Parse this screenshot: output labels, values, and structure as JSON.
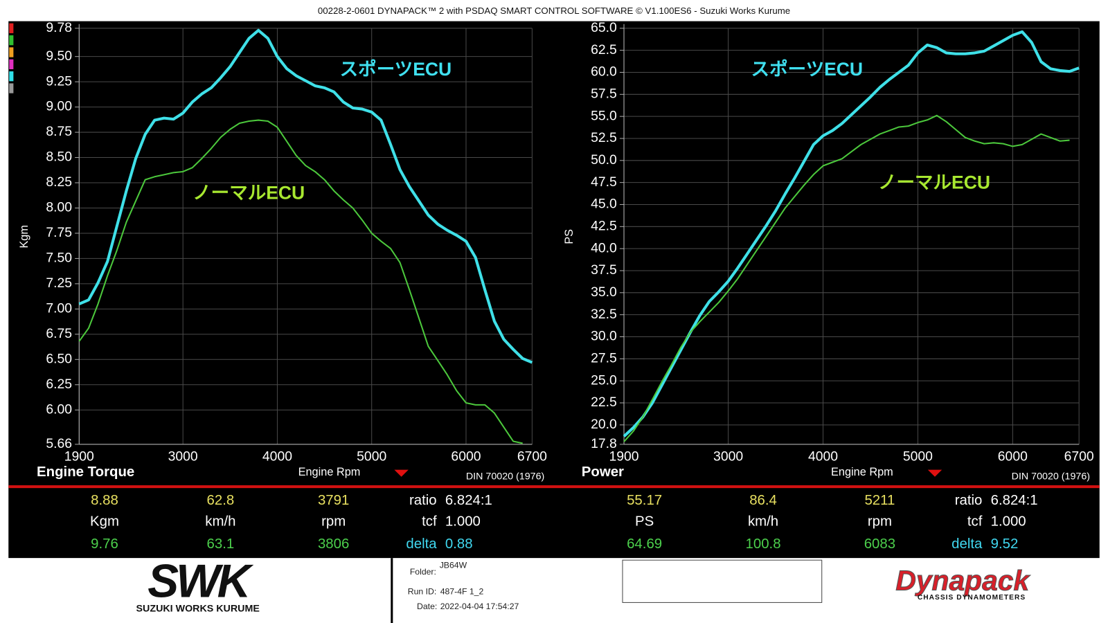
{
  "header": {
    "title": "00228-2-0601 DYNAPACK™ 2 with PSDAQ SMART CONTROL SOFTWARE © V1.100ES6 - Suzuki Works Kurume"
  },
  "chart_data": [
    {
      "type": "line",
      "title": "Engine Torque",
      "x_label": "Engine Rpm",
      "y_label": "Kgm",
      "note": "DIN 70020 (1976)",
      "x": [
        1900,
        2000,
        2100,
        2200,
        2300,
        2400,
        2500,
        2600,
        2700,
        2800,
        2900,
        3000,
        3100,
        3200,
        3300,
        3400,
        3500,
        3600,
        3700,
        3800,
        3900,
        4000,
        4100,
        4200,
        4300,
        4400,
        4500,
        4600,
        4700,
        4800,
        4900,
        5000,
        5100,
        5200,
        5300,
        5400,
        5500,
        5600,
        5700,
        5800,
        5900,
        6000,
        6100,
        6200,
        6300,
        6400,
        6500,
        6600,
        6700
      ],
      "xlim": [
        1900,
        6700
      ],
      "xticks": [
        1900,
        3000,
        4000,
        5000,
        6000,
        6700
      ],
      "ylim": [
        5.66,
        9.78
      ],
      "yticks": [
        5.66,
        {
          "value": 6,
          "label": "6.00"
        },
        6.25,
        {
          "value": 6.5,
          "label": "6.50"
        },
        6.75,
        {
          "value": 7,
          "label": "7.00"
        },
        7.25,
        {
          "value": 7.5,
          "label": "7.50"
        },
        7.75,
        {
          "value": 8,
          "label": "8.00"
        },
        8.25,
        {
          "value": 8.5,
          "label": "8.50"
        },
        8.75,
        {
          "value": 9,
          "label": "9.00"
        },
        9.25,
        {
          "value": 9.5,
          "label": "9.50"
        },
        9.78
      ],
      "grid": true,
      "series": [
        {
          "name": "スポーツECU",
          "color": "#3fe0e8",
          "values": [
            7.05,
            7.09,
            7.26,
            7.47,
            7.82,
            8.17,
            8.49,
            8.73,
            8.87,
            8.89,
            8.88,
            8.94,
            9.05,
            9.13,
            9.19,
            9.29,
            9.4,
            9.54,
            9.68,
            9.76,
            9.68,
            9.5,
            9.38,
            9.31,
            9.26,
            9.21,
            9.19,
            9.15,
            9.05,
            8.99,
            8.98,
            8.95,
            8.87,
            8.63,
            8.38,
            8.21,
            8.07,
            7.93,
            7.84,
            7.78,
            7.73,
            7.67,
            7.51,
            7.19,
            6.88,
            6.7,
            6.6,
            6.51,
            6.47
          ]
        },
        {
          "name": "ノーマルECU",
          "color": "#4cc83c",
          "values": [
            6.68,
            6.81,
            7.05,
            7.33,
            7.58,
            7.86,
            8.07,
            8.28,
            8.31,
            8.33,
            8.35,
            8.36,
            8.4,
            8.49,
            8.59,
            8.7,
            8.78,
            8.84,
            8.86,
            8.87,
            8.86,
            8.8,
            8.66,
            8.52,
            8.42,
            8.36,
            8.28,
            8.17,
            8.08,
            8.0,
            7.88,
            7.75,
            7.67,
            7.6,
            7.46,
            7.19,
            6.91,
            6.63,
            6.49,
            6.35,
            6.19,
            6.07,
            6.05,
            6.05,
            5.97,
            5.83,
            5.69,
            5.67,
            null
          ]
        }
      ]
    },
    {
      "type": "line",
      "title": "Power",
      "x_label": "Engine Rpm",
      "y_label": "PS",
      "note": "DIN 70020 (1976)",
      "x": [
        1900,
        2000,
        2100,
        2200,
        2300,
        2400,
        2500,
        2600,
        2700,
        2800,
        2900,
        3000,
        3100,
        3200,
        3300,
        3400,
        3500,
        3600,
        3700,
        3800,
        3900,
        4000,
        4100,
        4200,
        4300,
        4400,
        4500,
        4600,
        4700,
        4800,
        4900,
        5000,
        5100,
        5200,
        5300,
        5400,
        5500,
        5600,
        5700,
        5800,
        5900,
        6000,
        6100,
        6200,
        6300,
        6400,
        6500,
        6600,
        6700
      ],
      "xlim": [
        1900,
        6700
      ],
      "xticks": [
        1900,
        3000,
        4000,
        5000,
        6000,
        6700
      ],
      "ylim": [
        17.8,
        65
      ],
      "yticks": [
        17.8,
        {
          "value": 20,
          "label": "20.0"
        },
        22.5,
        {
          "value": 25,
          "label": "25.0"
        },
        27.5,
        {
          "value": 30,
          "label": "30.0"
        },
        32.5,
        {
          "value": 35,
          "label": "35.0"
        },
        37.5,
        {
          "value": 40,
          "label": "40.0"
        },
        42.5,
        {
          "value": 45,
          "label": "45.0"
        },
        47.5,
        {
          "value": 50,
          "label": "50.0"
        },
        52.5,
        {
          "value": 55,
          "label": "55.0"
        },
        57.5,
        {
          "value": 60,
          "label": "60.0"
        },
        62.5,
        {
          "value": 65,
          "label": "65.0"
        }
      ],
      "grid": true,
      "series": [
        {
          "name": "スポーツECU",
          "color": "#3fe0e8",
          "values": [
            18.7,
            19.7,
            20.9,
            22.5,
            24.5,
            26.5,
            28.5,
            30.5,
            32.4,
            34.0,
            35.1,
            36.3,
            37.8,
            39.4,
            41.0,
            42.6,
            44.3,
            46.2,
            48.0,
            49.9,
            51.8,
            52.8,
            53.4,
            54.2,
            55.2,
            56.2,
            57.2,
            58.3,
            59.2,
            60.0,
            60.8,
            62.2,
            63.1,
            62.8,
            62.2,
            62.1,
            62.1,
            62.2,
            62.4,
            63.0,
            63.6,
            64.2,
            64.6,
            63.4,
            61.2,
            60.4,
            60.2,
            60.1,
            60.5
          ]
        },
        {
          "name": "ノーマルECU",
          "color": "#4cc83c",
          "values": [
            18.1,
            19.3,
            20.9,
            22.9,
            24.9,
            26.8,
            28.8,
            30.5,
            31.7,
            32.8,
            33.9,
            35.2,
            36.6,
            38.2,
            39.8,
            41.4,
            43.0,
            44.6,
            45.9,
            47.2,
            48.4,
            49.4,
            49.8,
            50.2,
            51.0,
            51.8,
            52.4,
            53.0,
            53.4,
            53.8,
            53.9,
            54.3,
            54.6,
            55.1,
            54.4,
            53.5,
            52.6,
            52.2,
            51.9,
            52.0,
            51.9,
            51.6,
            51.8,
            52.4,
            53.0,
            52.6,
            52.2,
            52.3,
            null
          ]
        }
      ]
    }
  ],
  "readouts": [
    {
      "rows": [
        [
          "8.88",
          "62.8",
          "3791",
          "ratio",
          "6.824:1"
        ],
        [
          "Kgm",
          "km/h",
          "rpm",
          "tcf",
          "1.000"
        ],
        [
          "9.76",
          "63.1",
          "3806",
          "delta",
          "0.88"
        ]
      ]
    },
    {
      "rows": [
        [
          "55.17",
          "86.4",
          "5211",
          "ratio",
          "6.824:1"
        ],
        [
          "PS",
          "km/h",
          "rpm",
          "tcf",
          "1.000"
        ],
        [
          "64.69",
          "100.8",
          "6083",
          "delta",
          "9.52"
        ]
      ]
    }
  ],
  "footer": {
    "logo": "SWK",
    "logo_sub": "SUZUKI WORKS KURUME",
    "folder_label": "Folder:",
    "folder": "JB64W",
    "run_label": "Run ID:",
    "run": "487-4F 1_2",
    "date_label": "Date:",
    "date": "2022-04-04 17:54:27",
    "brand": "Dynapack",
    "brand_sub": "CHASSIS DYNAMOMETERS"
  }
}
